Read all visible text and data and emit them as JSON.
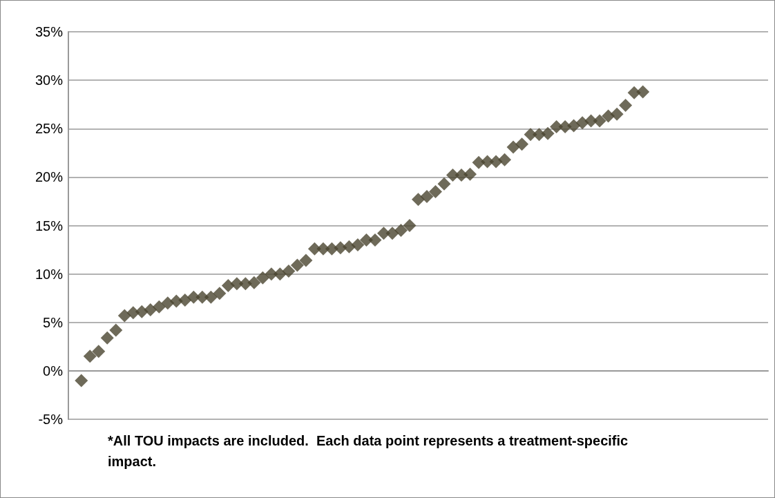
{
  "chart_data": {
    "type": "scatter",
    "categories": [
      null,
      null,
      null,
      null,
      null,
      null,
      null,
      null,
      null,
      null,
      null,
      null,
      null,
      null,
      null,
      null,
      null,
      null,
      null,
      null,
      null,
      null,
      null,
      null,
      null,
      null,
      null,
      null,
      null,
      null,
      null,
      null,
      null,
      null,
      null,
      null,
      null,
      null,
      null,
      null,
      null,
      null,
      null,
      null,
      null,
      null,
      null,
      null,
      null,
      null,
      null,
      null,
      null,
      null,
      null,
      null,
      null,
      null,
      null,
      null,
      null,
      null,
      null,
      null,
      null,
      null,
      null,
      null,
      null,
      null,
      null,
      null,
      null,
      null,
      null,
      null,
      null,
      null,
      null,
      null,
      null
    ],
    "series": [
      {
        "color": "#4a4530",
        "values": [
          null,
          -1.0,
          1.5,
          2.0,
          3.4,
          4.2,
          5.7,
          6.0,
          6.1,
          6.3,
          6.6,
          7.0,
          7.2,
          7.3,
          7.6,
          7.6,
          7.6,
          8.0,
          8.8,
          9.0,
          9.0,
          9.1,
          9.6,
          10.0,
          10.0,
          10.3,
          10.9,
          11.4,
          12.6,
          12.6,
          12.6,
          12.7,
          12.8,
          13.0,
          13.5,
          13.5,
          14.2,
          14.2,
          14.5,
          15.0,
          17.7,
          18.0,
          18.5,
          19.3,
          20.2,
          20.2,
          20.3,
          21.5,
          21.6,
          21.6,
          21.8,
          23.1,
          23.4,
          24.4,
          24.4,
          24.5,
          25.2,
          25.2,
          25.3,
          25.6,
          25.8,
          25.8,
          26.3,
          26.5,
          27.4,
          28.7,
          28.8,
          null,
          null,
          null,
          null,
          null,
          null,
          null,
          null,
          null,
          null,
          null,
          null,
          null,
          null
        ]
      }
    ],
    "ylim": [
      -5,
      35
    ],
    "yticks": [
      {
        "value": -5,
        "label": "-5%"
      },
      {
        "value": 0,
        "label": "0%"
      },
      {
        "value": 5,
        "label": "5%"
      },
      {
        "value": 10,
        "label": "10%"
      },
      {
        "value": 15,
        "label": "15%"
      },
      {
        "value": 20,
        "label": "20%"
      },
      {
        "value": 25,
        "label": "25%"
      },
      {
        "value": 30,
        "label": "30%"
      },
      {
        "value": 35,
        "label": "35%"
      }
    ],
    "grid": "y",
    "marker": "diamond",
    "tick_labels": "y",
    "annotations": [
      "*All TOU impacts are included.  Each data point represents a treatment-specific impact."
    ]
  }
}
